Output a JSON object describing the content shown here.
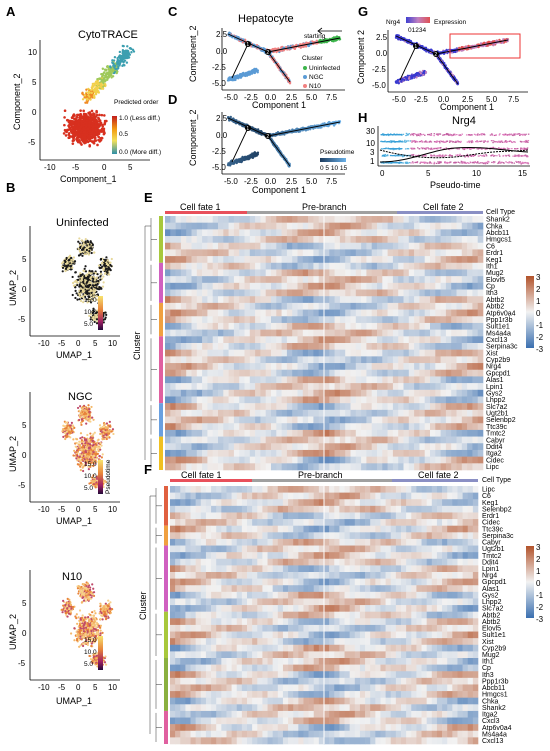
{
  "panels": {
    "A": {
      "label": "A",
      "title": "CytoTRACE",
      "xlabel": "Component_1",
      "ylabel": "Component_2",
      "xticks": [
        "-10",
        "-5",
        "0",
        "5"
      ],
      "yticks": [
        "10",
        "5",
        "0",
        "-5"
      ],
      "legend_title": "Predicted order",
      "legend_labels": [
        "1.0 (Less diff.)",
        "0.5",
        "0.0 (More diff.)"
      ]
    },
    "B": {
      "label": "B",
      "subplots": [
        {
          "title": "Uninfected",
          "legend": [
            "15.0",
            "10.0",
            "5.0"
          ]
        },
        {
          "title": "NGC",
          "legend": [
            "15.0",
            "10.0",
            "5.0"
          ],
          "legend_title": "Pseudotime"
        },
        {
          "title": "N10",
          "legend": [
            "15.0",
            "10.0",
            "5.0"
          ]
        }
      ],
      "xlabel": "UMAP_1",
      "ylabel": "UMAP_2",
      "xticks": [
        "-10",
        "-5",
        "0",
        "5",
        "10"
      ],
      "yticks": [
        "5",
        "0",
        "-5"
      ]
    },
    "C": {
      "label": "C",
      "title": "Hepatocyte",
      "xlabel": "Component 1",
      "ylabel": "Component_2",
      "xticks": [
        "-5.0",
        "-2.5",
        "0.0",
        "2.5",
        "5.0",
        "7.5"
      ],
      "yticks": [
        "2.5",
        "0.0",
        "-2.5",
        "-5.0"
      ],
      "annotation": "starting",
      "legend_title": "Cluster",
      "legend": [
        {
          "name": "Uninfected",
          "color": "#3cb44b"
        },
        {
          "name": "NGC",
          "color": "#5b9bd5"
        },
        {
          "name": "N10",
          "color": "#f08080"
        }
      ]
    },
    "D": {
      "label": "D",
      "xlabel": "Component 1",
      "ylabel": "Component_2",
      "xticks": [
        "-5.0",
        "-2.5",
        "0.0",
        "2.5",
        "5.0",
        "7.5"
      ],
      "yticks": [
        "2.5",
        "0.0",
        "-2.5",
        "-5.0"
      ],
      "legend_title": "Pseudotime",
      "legend_ticks": "0 5 10 15"
    },
    "G": {
      "label": "G",
      "gene": "Nrg4",
      "legend_title": "Expression",
      "legend_ticks": "01234",
      "xlabel": "Component 1",
      "ylabel": "Component 2",
      "xticks": [
        "-5.0",
        "-2.5",
        "0.0",
        "2.5",
        "5.0",
        "7.5"
      ],
      "yticks": [
        "2.5",
        "0.0",
        "-2.5",
        "-5.0"
      ]
    },
    "H": {
      "label": "H",
      "title": "Nrg4",
      "xlabel": "Pseudo-time",
      "xticks": [
        "0",
        "5",
        "10",
        "15"
      ],
      "yticks": [
        "30",
        "10",
        "3",
        "1"
      ]
    },
    "E": {
      "label": "E",
      "ylabel": "Cluster",
      "header": [
        "Cell fate 1",
        "Pre-branch",
        "Cell fate 2"
      ],
      "row_header": "Cell Type",
      "genes": [
        "Shank2",
        "Chka",
        "Abcb11",
        "Hmgcs1",
        "C6",
        "Erdr1",
        "Keg1",
        "Ith1",
        "Mug2",
        "Elovl5",
        "Cp",
        "Ith3",
        "Abtb2",
        "Abtb2",
        "Atp6v0a4",
        "Ppp1r3b",
        "Sult1e1",
        "Ms4a4a",
        "Cxcl13",
        "Serpina3c",
        "Xist",
        "Cyp2b9",
        "Nrg4",
        "Gpcpd1",
        "Alas1",
        "Lpin1",
        "Gys2",
        "Lhpp2",
        "Slc7a2",
        "Ugt2b1",
        "Selenbp2",
        "Ttc39c",
        "Tmtc2",
        "Cabyr",
        "Ddit4",
        "Itga2",
        "Cidec",
        "Lipc"
      ],
      "scale_ticks": [
        "3",
        "2",
        "1",
        "0",
        "-1",
        "-2",
        "-3"
      ]
    },
    "F": {
      "label": "F",
      "ylabel": "Cluster",
      "header": [
        "Cell fate 1",
        "Pre-branch",
        "Cell fate 2"
      ],
      "row_header": "Cell Type",
      "genes": [
        "Lipc",
        "C6",
        "Keg1",
        "Selenbp2",
        "Erdr1",
        "Cidec",
        "Ttc39c",
        "Serpina3c",
        "Cabyr",
        "Ugt2b1",
        "Tmtc2",
        "Ddit4",
        "Lpin1",
        "Nrg4",
        "Gpcpd1",
        "Alas1",
        "Gys2",
        "Lhpp2",
        "Slc7a2",
        "Abtb2",
        "Abtb2",
        "Elovl5",
        "Sult1e1",
        "Xist",
        "Cyp2b9",
        "Mug2",
        "Ith1",
        "Cp",
        "Ith3",
        "Ppp1r3b",
        "Abcb11",
        "Hmgcs1",
        "Chka",
        "Shank2",
        "Itga2",
        "Cxcl3",
        "Atp6v0a4",
        "Ms4a4a",
        "Cxcl13"
      ],
      "scale_ticks": [
        "3",
        "2",
        "1",
        "0",
        "-1",
        "-2",
        "-3"
      ]
    }
  },
  "colors": {
    "heat_high": "#b2522a",
    "heat_mid": "#f2f2f2",
    "heat_low": "#3a6fb0",
    "fate1": "#e8505b",
    "prebranch": "#a0a0a0",
    "fate2": "#8a8fc4"
  }
}
